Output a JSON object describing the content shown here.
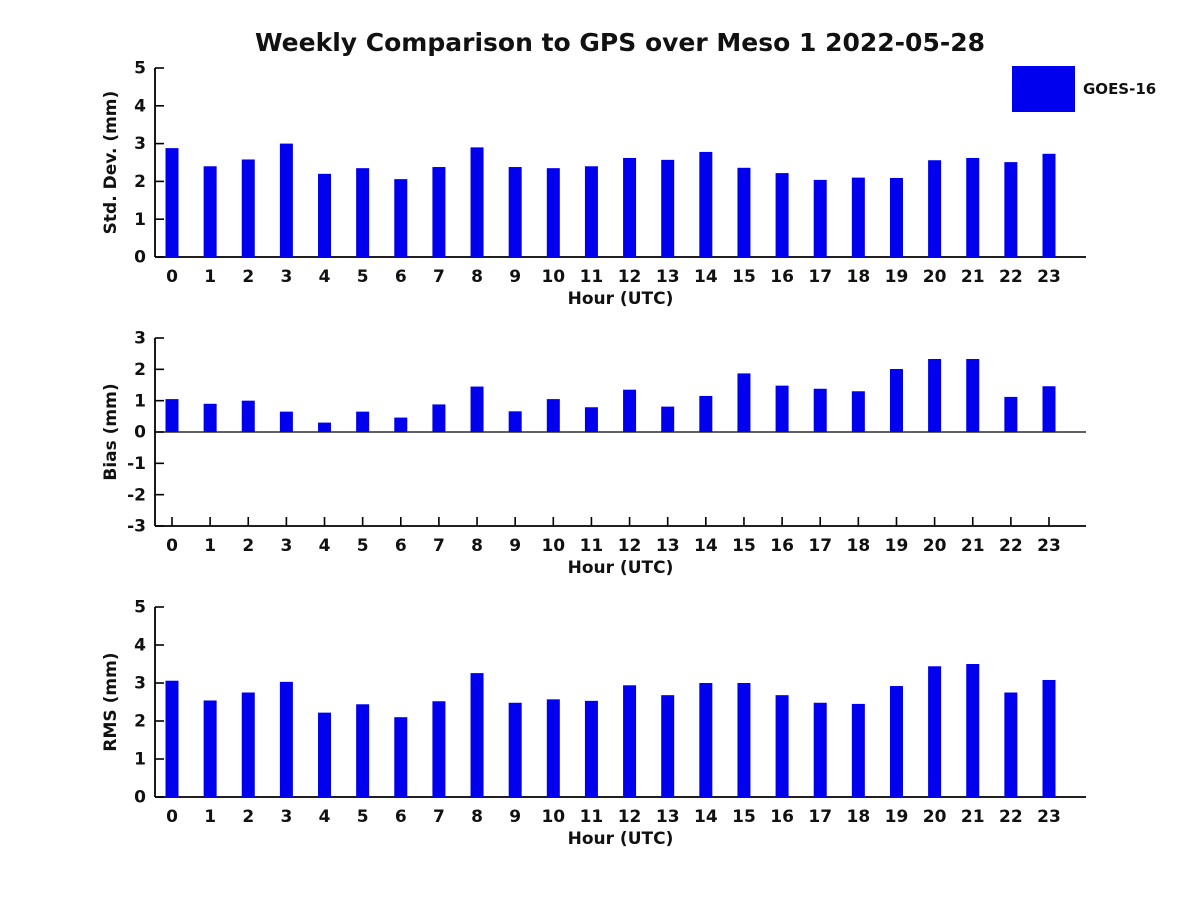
{
  "figure": {
    "title": "Weekly Comparison to GPS over Meso 1 2022-05-28"
  },
  "legend": {
    "label": "GOES-16",
    "swatch_color": "#0000EE"
  },
  "colors": {
    "bar": "#0000EE",
    "axis": "#000000",
    "text": "#111111"
  },
  "chart_data": [
    {
      "type": "bar",
      "name": "std-dev",
      "title": "",
      "xlabel": "Hour (UTC)",
      "ylabel": "Std. Dev. (mm)",
      "categories": [
        "0",
        "1",
        "2",
        "3",
        "4",
        "5",
        "6",
        "7",
        "8",
        "9",
        "10",
        "11",
        "12",
        "13",
        "14",
        "15",
        "16",
        "17",
        "18",
        "19",
        "20",
        "21",
        "22",
        "23"
      ],
      "values": [
        2.88,
        2.4,
        2.58,
        3.0,
        2.2,
        2.35,
        2.06,
        2.38,
        2.9,
        2.38,
        2.35,
        2.4,
        2.62,
        2.57,
        2.78,
        2.36,
        2.22,
        2.04,
        2.1,
        2.09,
        2.56,
        2.62,
        2.51,
        2.73
      ],
      "ylim": [
        0,
        5
      ],
      "yticks": [
        0,
        1,
        2,
        3,
        4,
        5
      ],
      "grid": false,
      "series_name": "GOES-16"
    },
    {
      "type": "bar",
      "name": "bias",
      "title": "",
      "xlabel": "Hour (UTC)",
      "ylabel": "Bias (mm)",
      "categories": [
        "0",
        "1",
        "2",
        "3",
        "4",
        "5",
        "6",
        "7",
        "8",
        "9",
        "10",
        "11",
        "12",
        "13",
        "14",
        "15",
        "16",
        "17",
        "18",
        "19",
        "20",
        "21",
        "22",
        "23"
      ],
      "values": [
        1.05,
        0.9,
        1.0,
        0.65,
        0.3,
        0.65,
        0.46,
        0.88,
        1.45,
        0.66,
        1.05,
        0.79,
        1.35,
        0.81,
        1.15,
        1.87,
        1.48,
        1.38,
        1.3,
        2.01,
        2.33,
        2.33,
        1.12,
        1.46
      ],
      "ylim": [
        -3,
        3
      ],
      "yticks": [
        -3,
        -2,
        -1,
        0,
        1,
        2,
        3
      ],
      "zero_line": true,
      "grid": false,
      "series_name": "GOES-16"
    },
    {
      "type": "bar",
      "name": "rms",
      "title": "",
      "xlabel": "Hour (UTC)",
      "ylabel": "RMS (mm)",
      "categories": [
        "0",
        "1",
        "2",
        "3",
        "4",
        "5",
        "6",
        "7",
        "8",
        "9",
        "10",
        "11",
        "12",
        "13",
        "14",
        "15",
        "16",
        "17",
        "18",
        "19",
        "20",
        "21",
        "22",
        "23"
      ],
      "values": [
        3.06,
        2.54,
        2.75,
        3.03,
        2.22,
        2.44,
        2.1,
        2.52,
        3.26,
        2.48,
        2.57,
        2.53,
        2.94,
        2.68,
        3.0,
        3.0,
        2.68,
        2.48,
        2.45,
        2.92,
        3.44,
        3.5,
        2.75,
        3.08
      ],
      "ylim": [
        0,
        5
      ],
      "yticks": [
        0,
        1,
        2,
        3,
        4,
        5
      ],
      "grid": false,
      "series_name": "GOES-16"
    }
  ]
}
